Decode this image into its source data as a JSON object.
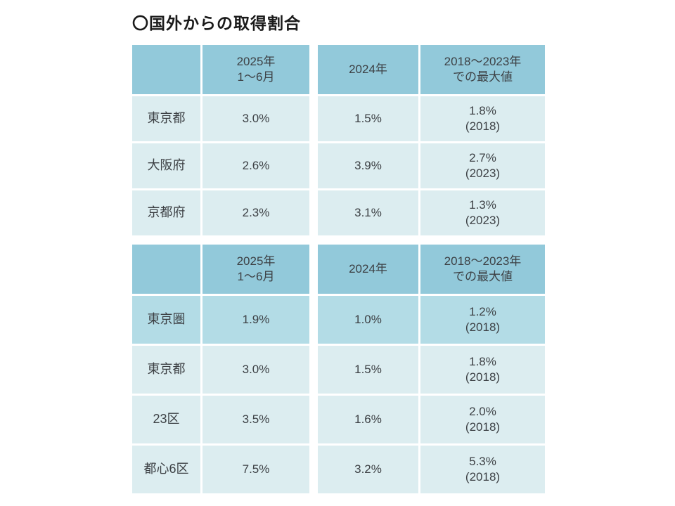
{
  "page": {
    "title": "〇国外からの取得割合"
  },
  "colors": {
    "header": "#92c9da",
    "row_light": "#dcedf0",
    "row_highlight": "#b3dce6",
    "text": "#3d4145",
    "title": "#1a1a1a"
  },
  "tables": [
    {
      "headers": [
        "",
        "2025年\n1〜6月",
        "2024年",
        "2018〜2023年\nでの最大値"
      ],
      "rows": [
        {
          "label": "東京都",
          "values": [
            "3.0%",
            "1.5%",
            "1.8%\n(2018)"
          ]
        },
        {
          "label": "大阪府",
          "values": [
            "2.6%",
            "3.9%",
            "2.7%\n(2023)"
          ]
        },
        {
          "label": "京都府",
          "values": [
            "2.3%",
            "3.1%",
            "1.3%\n(2023)"
          ]
        }
      ]
    },
    {
      "headers": [
        "",
        "2025年\n1〜6月",
        "2024年",
        "2018〜2023年\nでの最大値"
      ],
      "rows": [
        {
          "label": "東京圏",
          "values": [
            "1.9%",
            "1.0%",
            "1.2%\n(2018)"
          ],
          "highlight": true
        },
        {
          "label": "東京都",
          "values": [
            "3.0%",
            "1.5%",
            "1.8%\n(2018)"
          ]
        },
        {
          "label": "23区",
          "values": [
            "3.5%",
            "1.6%",
            "2.0%\n(2018)"
          ]
        },
        {
          "label": "都心6区",
          "values": [
            "7.5%",
            "3.2%",
            "5.3%\n(2018)"
          ]
        }
      ]
    }
  ]
}
